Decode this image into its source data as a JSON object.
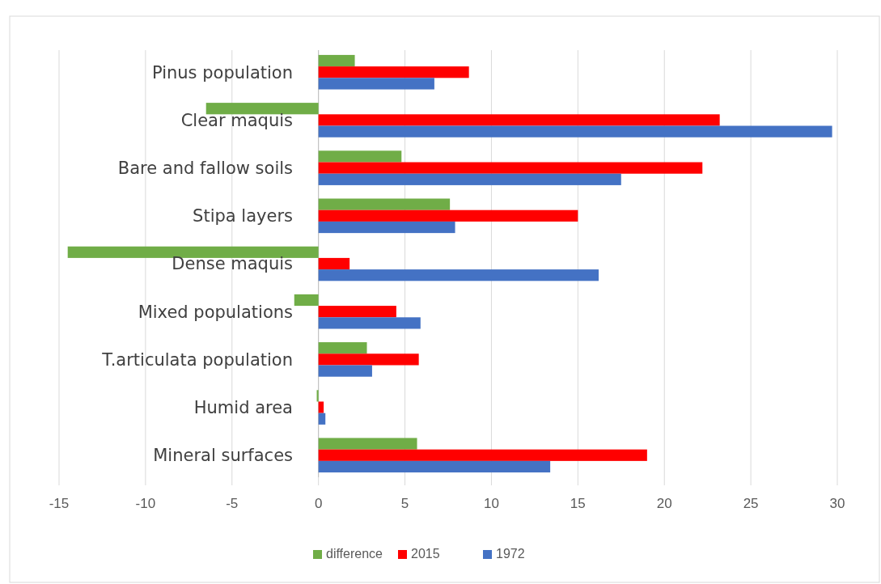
{
  "chart_data": {
    "type": "bar",
    "orientation": "horizontal",
    "categories": [
      "Pinus population",
      "Clear maquis",
      "Bare and fallow soils",
      "Stipa layers",
      "Dense maquis",
      "Mixed populations",
      "T.articulata population",
      "Humid area",
      "Mineral surfaces"
    ],
    "series": [
      {
        "name": "difference",
        "color": "#70ad47",
        "values": [
          2.1,
          -6.5,
          4.8,
          7.6,
          -14.5,
          -1.4,
          2.8,
          -0.1,
          5.7
        ]
      },
      {
        "name": "2015",
        "color": "#ff0000",
        "values": [
          8.7,
          23.2,
          22.2,
          15.0,
          1.8,
          4.5,
          5.8,
          0.3,
          19.0
        ]
      },
      {
        "name": "1972",
        "color": "#4472c4",
        "values": [
          6.7,
          29.7,
          17.5,
          7.9,
          16.2,
          5.9,
          3.1,
          0.4,
          13.4
        ]
      }
    ],
    "xlim": [
      -15,
      30
    ],
    "xticks": [
      -15,
      -10,
      -5,
      0,
      5,
      10,
      15,
      20,
      25,
      30
    ],
    "grid": "x",
    "legend": "bottom"
  }
}
